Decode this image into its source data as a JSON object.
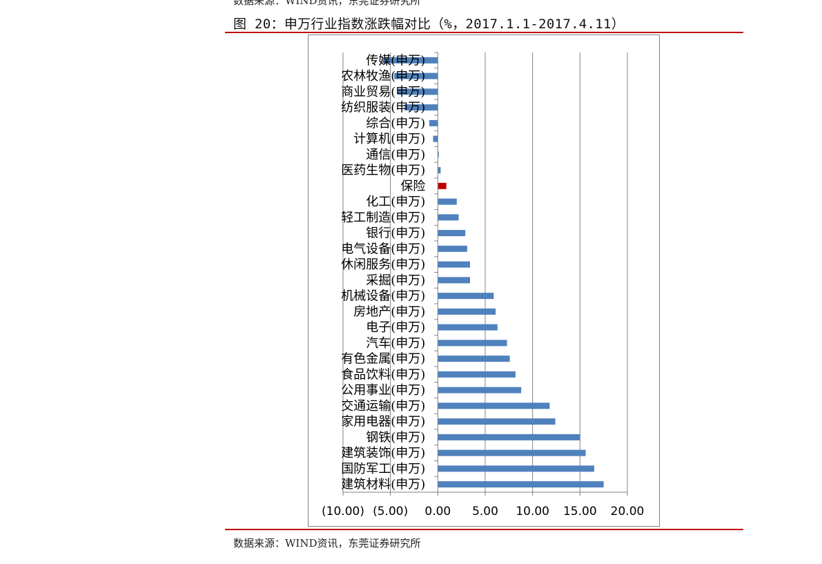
{
  "header": {
    "top_source_text": "数据来源：WIND资讯，东莞证券研究所",
    "figure_title": "图 20：申万行业指数涨跌幅对比（%，2017.1.1-2017.4.11）"
  },
  "footer": {
    "source_text": "数据来源：WIND资讯，东莞证券研究所"
  },
  "colors": {
    "bar_default": "#4F81BD",
    "bar_highlight": "#C00000",
    "rule": "#C00000",
    "grid": "#808080"
  },
  "chart_data": {
    "type": "bar",
    "orientation": "horizontal",
    "title": "",
    "xlabel": "",
    "ylabel": "",
    "xlim": [
      -10,
      20
    ],
    "x_ticks": [
      -10,
      -5,
      0,
      5,
      10,
      15,
      20
    ],
    "x_tick_labels": [
      "(10.00)",
      "(5.00)",
      "0.00",
      "5.00",
      "10.00",
      "15.00",
      "20.00"
    ],
    "grid": "vertical",
    "legend": "none",
    "categories": [
      "传媒(申万)",
      "农林牧渔(申万)",
      "商业贸易(申万)",
      "纺织服装(申万)",
      "综合(申万)",
      "计算机(申万)",
      "通信(申万)",
      "医药生物(申万)",
      "保险",
      "化工(申万)",
      "轻工制造(申万)",
      "银行(申万)",
      "电气设备(申万)",
      "休闲服务(申万)",
      "采掘(申万)",
      "机械设备(申万)",
      "房地产(申万)",
      "电子(申万)",
      "汽车(申万)",
      "有色金属(申万)",
      "食品饮料(申万)",
      "公用事业(申万)",
      "交通运输(申万)",
      "家用电器(申万)",
      "钢铁(申万)",
      "建筑装饰(申万)",
      "国防军工(申万)",
      "建筑材料(申万)"
    ],
    "values": [
      -5.8,
      -4.6,
      -4.2,
      -3.5,
      -0.9,
      -0.5,
      0.1,
      0.3,
      0.9,
      2.0,
      2.2,
      2.9,
      3.1,
      3.4,
      3.4,
      5.9,
      6.1,
      6.3,
      7.3,
      7.6,
      8.2,
      8.8,
      11.8,
      12.4,
      15.0,
      15.6,
      16.5,
      17.5
    ],
    "highlight_category": "保险"
  }
}
